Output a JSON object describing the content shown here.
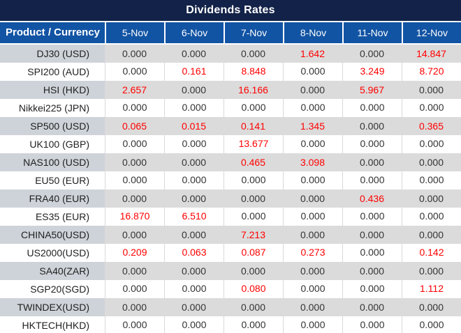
{
  "title": "Dividends Rates",
  "colors": {
    "title_bg": "#122248",
    "header_bg": "#1254A4",
    "label_gray": "#CED3D9",
    "data_gray": "#DBDBDB",
    "grid_line": "#D9D9D9",
    "value_red": "#FF0000",
    "value_black": "#333333",
    "text_white": "#FFFFFF"
  },
  "chart_data": {
    "type": "table",
    "title": "Dividends Rates",
    "columns": [
      "Product / Currency",
      "5-Nov",
      "6-Nov",
      "7-Nov",
      "8-Nov",
      "11-Nov",
      "12-Nov"
    ],
    "rows": [
      {
        "product": "DJ30 (USD)",
        "values": [
          "0.000",
          "0.000",
          "0.000",
          "1.642",
          "0.000",
          "14.847"
        ]
      },
      {
        "product": "SPI200 (AUD)",
        "values": [
          "0.000",
          "0.161",
          "8.848",
          "0.000",
          "3.249",
          "8.720"
        ]
      },
      {
        "product": "HSI (HKD)",
        "values": [
          "2.657",
          "0.000",
          "16.166",
          "0.000",
          "5.967",
          "0.000"
        ]
      },
      {
        "product": "Nikkei225 (JPN)",
        "values": [
          "0.000",
          "0.000",
          "0.000",
          "0.000",
          "0.000",
          "0.000"
        ]
      },
      {
        "product": "SP500 (USD)",
        "values": [
          "0.065",
          "0.015",
          "0.141",
          "1.345",
          "0.000",
          "0.365"
        ]
      },
      {
        "product": "UK100 (GBP)",
        "values": [
          "0.000",
          "0.000",
          "13.677",
          "0.000",
          "0.000",
          "0.000"
        ]
      },
      {
        "product": "NAS100 (USD)",
        "values": [
          "0.000",
          "0.000",
          "0.465",
          "3.098",
          "0.000",
          "0.000"
        ]
      },
      {
        "product": "EU50 (EUR)",
        "values": [
          "0.000",
          "0.000",
          "0.000",
          "0.000",
          "0.000",
          "0.000"
        ]
      },
      {
        "product": "FRA40 (EUR)",
        "values": [
          "0.000",
          "0.000",
          "0.000",
          "0.000",
          "0.436",
          "0.000"
        ]
      },
      {
        "product": "ES35 (EUR)",
        "values": [
          "16.870",
          "6.510",
          "0.000",
          "0.000",
          "0.000",
          "0.000"
        ]
      },
      {
        "product": "CHINA50(USD)",
        "values": [
          "0.000",
          "0.000",
          "7.213",
          "0.000",
          "0.000",
          "0.000"
        ]
      },
      {
        "product": "US2000(USD)",
        "values": [
          "0.209",
          "0.063",
          "0.087",
          "0.273",
          "0.000",
          "0.142"
        ]
      },
      {
        "product": "SA40(ZAR)",
        "values": [
          "0.000",
          "0.000",
          "0.000",
          "0.000",
          "0.000",
          "0.000"
        ]
      },
      {
        "product": "SGP20(SGD)",
        "values": [
          "0.000",
          "0.000",
          "0.080",
          "0.000",
          "0.000",
          "1.112"
        ]
      },
      {
        "product": "TWINDEX(USD)",
        "values": [
          "0.000",
          "0.000",
          "0.000",
          "0.000",
          "0.000",
          "0.000"
        ]
      },
      {
        "product": "HKTECH(HKD)",
        "values": [
          "0.000",
          "0.000",
          "0.000",
          "0.000",
          "0.000",
          "0.000"
        ]
      }
    ]
  }
}
